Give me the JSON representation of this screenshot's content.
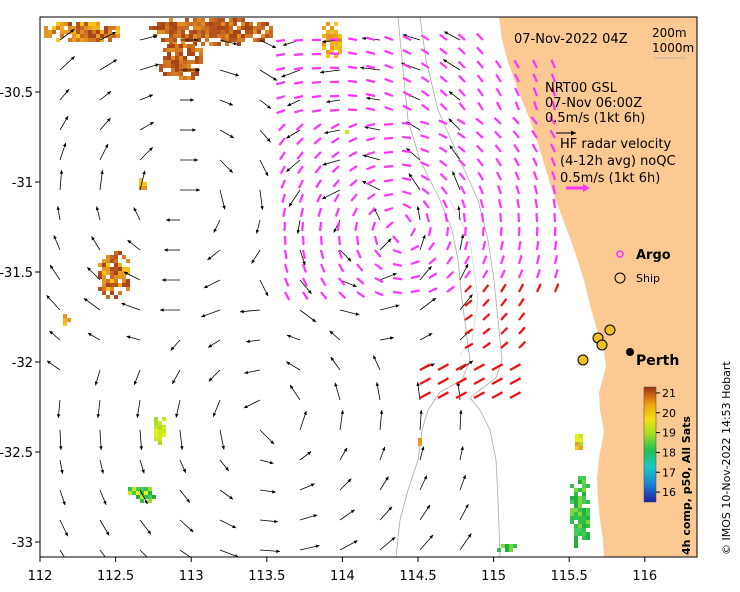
{
  "map": {
    "timestamp": "07-Nov-2022 04Z",
    "depth_labels": [
      "200m",
      "1000m"
    ],
    "model_label": "NRT00 GSL",
    "model_time": "07-Nov 06:00Z",
    "model_scale": "0.5m/s (1kt 6h)",
    "radar_title": "HF radar velocity",
    "radar_avg": "(4-12h avg) noQC",
    "radar_scale": "0.5m/s (1kt 6h)",
    "legend_argo": "Argo",
    "legend_ship": "Ship",
    "city": "Perth",
    "lon_ticks": [
      "112",
      "112.5",
      "113",
      "113.5",
      "114",
      "114.5",
      "115",
      "115.5",
      "116"
    ],
    "lat_ticks": [
      "-30.5",
      "-31",
      "-31.5",
      "-32",
      "-32.5",
      "-33"
    ],
    "colorbar": {
      "title": "4h comp, p50, All Sats",
      "ticks": [
        "21",
        "20",
        "19",
        "18",
        "17",
        "16"
      ],
      "range": [
        15.5,
        21.3
      ]
    },
    "credit": "© IMOS 10-Nov-2022 14:53 Hobart",
    "colors": {
      "land": "#fcc993",
      "model_arrows": "#000000",
      "radar_arrows": "#ff33ff",
      "radar_arrows_south": "#ee1111",
      "coast": "#aaaaaa"
    }
  }
}
